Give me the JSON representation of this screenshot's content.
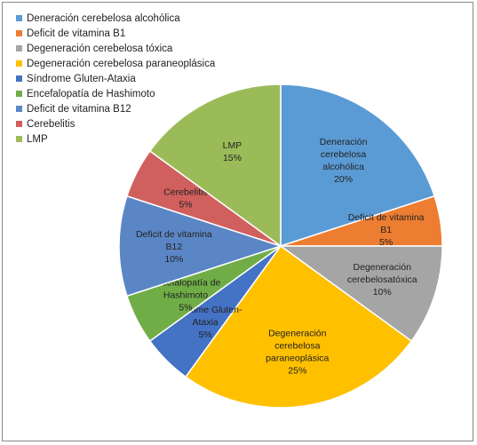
{
  "chart_data": {
    "type": "pie",
    "series": [
      {
        "name": "Deneración cerebelosa alcohólica",
        "legend": "Deneración cerebelosa alcohólica",
        "label_lines": [
          "Deneración",
          "cerebelosa",
          "alcohólica"
        ],
        "value": 20,
        "pct_label": "20%",
        "color": "#5b9bd5"
      },
      {
        "name": "Deficit de vitamina B1",
        "legend": "Deficit de vitamina B1",
        "label_lines": [
          "Deficit de vitamina",
          "B1"
        ],
        "value": 5,
        "pct_label": "5%",
        "color": "#ed7d31"
      },
      {
        "name": "Degeneración cerebelosa tóxica",
        "legend": "Degeneración cerebelosa tóxica",
        "label_lines": [
          "Degeneración",
          "cerebelosatóxica"
        ],
        "value": 10,
        "pct_label": "10%",
        "color": "#a5a5a5"
      },
      {
        "name": "Degeneración cerebelosa paraneoplásica",
        "legend": "Degeneración cerebelosa paraneoplásica",
        "label_lines": [
          "Degeneración",
          "cerebelosa",
          "paraneoplásica"
        ],
        "value": 25,
        "pct_label": "25%",
        "color": "#ffc000"
      },
      {
        "name": "Síndrome Gluten-Ataxia",
        "legend": "Síndrome Gluten-Ataxia",
        "label_lines": [
          "Síndrome Gluten-",
          "Ataxia"
        ],
        "value": 5,
        "pct_label": "5%",
        "color": "#4472c4"
      },
      {
        "name": "Encefalopatía de Hashimoto",
        "legend": "Encefalopatía de Hashimoto",
        "label_lines": [
          "Encefalopatía de",
          "Hashimoto"
        ],
        "value": 5,
        "pct_label": "5%",
        "color": "#70ad47"
      },
      {
        "name": "Deficit de vitamina B12",
        "legend": "Deficit de vitamina B12",
        "label_lines": [
          "Deficit de vitamina",
          "B12"
        ],
        "value": 10,
        "pct_label": "10%",
        "color": "#5b86c5"
      },
      {
        "name": "Cerebelitis",
        "legend": "Cerebelitis",
        "label_lines": [
          "Cerebelitis"
        ],
        "value": 5,
        "pct_label": "5%",
        "color": "#d0605e"
      },
      {
        "name": "LMP",
        "legend": "LMP",
        "label_lines": [
          "LMP"
        ],
        "value": 15,
        "pct_label": "15%",
        "color": "#9bbb59"
      }
    ],
    "legend_position": "top-left"
  }
}
